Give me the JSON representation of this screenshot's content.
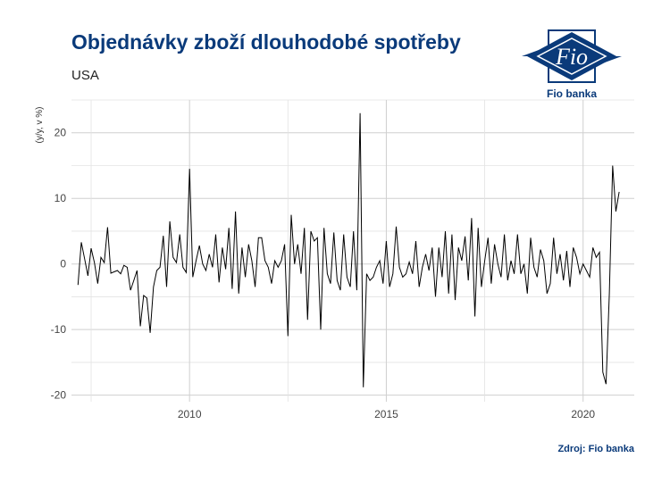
{
  "header": {
    "title": "Objednávky zboží dlouhodobé spotřeby",
    "subtitle": "USA"
  },
  "logo": {
    "name": "Fio",
    "caption": "Fio banka",
    "color": "#0a3a7a"
  },
  "footer": {
    "source": "Zdroj: Fio banka"
  },
  "chart_data": {
    "type": "line",
    "ylabel": "(y/y, v %)",
    "xlabel": "",
    "ylim": [
      -21,
      25
    ],
    "xlim": [
      2007.0,
      2021.3
    ],
    "y_ticks": [
      -20,
      -10,
      0,
      10,
      20
    ],
    "x_ticks": [
      2010,
      2015,
      2020
    ],
    "grid": true,
    "line_color": "#000000",
    "series": [
      {
        "start": "2007-03",
        "frequency": "monthly",
        "values": [
          -3.2,
          3.3,
          0.8,
          -1.8,
          2.4,
          0.2,
          -3.0,
          1.0,
          0.2,
          5.6,
          -1.4,
          -1.2,
          -1.0,
          -1.5,
          -0.2,
          -0.5,
          -4.0,
          -2.5,
          -1.0,
          -9.5,
          -4.8,
          -5.2,
          -10.5,
          -3.5,
          -1.0,
          -0.5,
          4.3,
          -3.5,
          6.5,
          1.0,
          0.2,
          4.5,
          -0.5,
          -1.3,
          14.5,
          -2.0,
          0.5,
          2.8,
          0.0,
          -1.0,
          1.5,
          -0.5,
          4.5,
          -2.8,
          2.5,
          -0.8,
          5.5,
          -3.8,
          8.0,
          -4.5,
          2.5,
          -2.0,
          3.0,
          0.5,
          -3.5,
          4.0,
          4.0,
          0.5,
          -0.5,
          -3.0,
          0.5,
          -0.5,
          0.5,
          3.0,
          -11.0,
          7.5,
          0.0,
          3.0,
          -1.5,
          5.5,
          -8.5,
          5.0,
          3.5,
          4.0,
          -10.0,
          5.5,
          -1.5,
          -3.0,
          4.8,
          -2.5,
          -4.0,
          4.5,
          -2.0,
          -3.5,
          5.0,
          -4.0,
          23.0,
          -18.8,
          -1.5,
          -2.5,
          -2.0,
          -0.5,
          0.5,
          -3.0,
          3.5,
          -3.5,
          -1.5,
          5.7,
          -0.5,
          -2.0,
          -1.5,
          0.3,
          -1.5,
          3.5,
          -3.5,
          -0.5,
          1.5,
          -1.0,
          2.5,
          -5.0,
          2.5,
          -2.0,
          5.0,
          -4.5,
          4.5,
          -5.5,
          2.5,
          0.5,
          4.2,
          -2.5,
          7.0,
          -8.0,
          5.5,
          -3.5,
          0.5,
          4.0,
          -3.0,
          3.0,
          0.0,
          -2.0,
          4.5,
          -2.5,
          0.5,
          -1.5,
          4.5,
          -1.5,
          0.0,
          -4.5,
          4.0,
          -0.5,
          -2.0,
          2.2,
          0.5,
          -4.5,
          -3.0,
          4.0,
          -1.5,
          1.5,
          -2.5,
          2.0,
          -3.5,
          2.5,
          1.0,
          -1.5,
          0.0,
          -1.0,
          -2.0,
          2.5,
          1.0,
          1.8,
          -16.5,
          -18.3,
          -4.5,
          15.0,
          8.0,
          11.0
        ]
      }
    ]
  }
}
